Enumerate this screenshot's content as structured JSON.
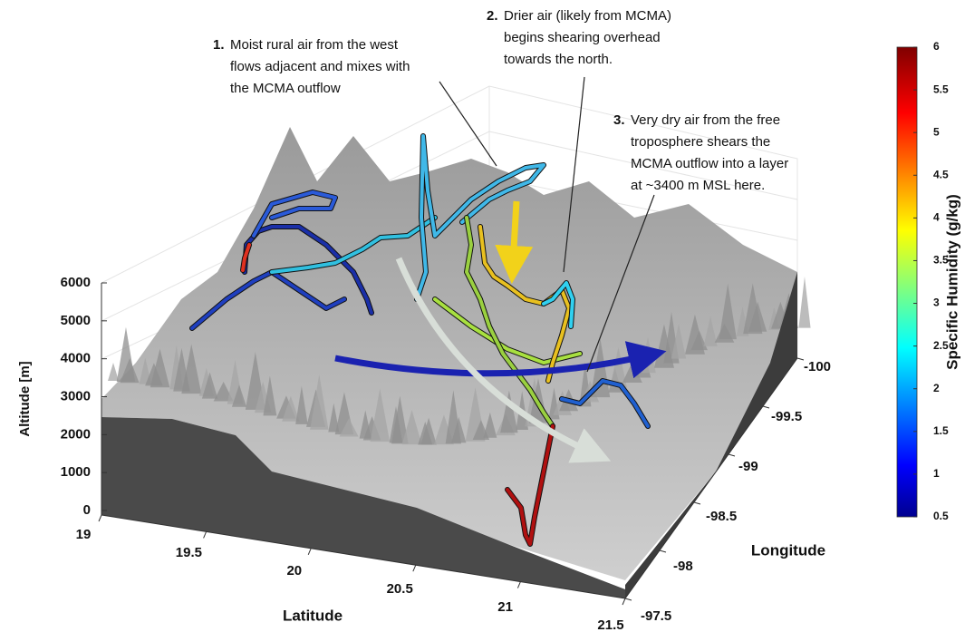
{
  "chart_data": {
    "type": "surface3d",
    "zlabel": "Altitude [m]",
    "zlim": [
      0,
      6000
    ],
    "zticks": [
      0,
      1000,
      2000,
      3000,
      4000,
      5000,
      6000
    ],
    "xlabel": "Latitude",
    "xlim": [
      19,
      21.5
    ],
    "xticks": [
      19,
      19.5,
      20,
      20.5,
      21,
      21.5
    ],
    "ylabel": "Longitude",
    "ylim": [
      -100,
      -97.5
    ],
    "yticks": [
      -100,
      -99.5,
      -99,
      -98.5,
      -98,
      -97.5
    ],
    "colorbar": {
      "label": "Specific Humidity (g/kg)",
      "lim": [
        0.5,
        6
      ],
      "ticks": [
        0.5,
        1,
        1.5,
        2,
        2.5,
        3,
        3.5,
        4,
        4.5,
        5,
        5.5,
        6
      ]
    },
    "annotations": [
      {
        "number": "1.",
        "lines": [
          "Moist rural air from the west",
          "flows adjacent and mixes with",
          "the MCMA outflow"
        ]
      },
      {
        "number": "2.",
        "lines": [
          "Drier air (likely from MCMA)",
          "begins shearing overhead",
          "towards the north."
        ]
      },
      {
        "number": "3.",
        "lines": [
          "Very dry air from the free",
          "troposphere shears the",
          "MCMA outflow into a layer",
          "at ~3400 m MSL here."
        ]
      }
    ]
  }
}
